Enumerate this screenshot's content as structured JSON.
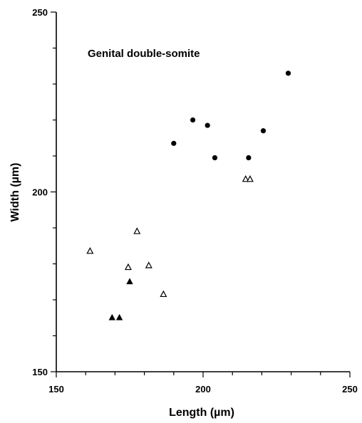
{
  "chart_data": {
    "type": "scatter",
    "xlabel": "Length (µm)",
    "ylabel": "Width (µm)",
    "xlim": [
      150,
      250
    ],
    "ylim": [
      150,
      250
    ],
    "x_ticks_labeled": [
      150,
      200,
      250
    ],
    "y_ticks_labeled": [
      150,
      200,
      250
    ],
    "x_minor_step": 10,
    "y_minor_step": 10,
    "grid": false,
    "annotation": "Genital double-somite",
    "series": [
      {
        "marker": "filled-circle",
        "points": [
          [
            190,
            213.5
          ],
          [
            196.5,
            220
          ],
          [
            201.5,
            218.5
          ],
          [
            204,
            209.5
          ],
          [
            215.5,
            209.5
          ],
          [
            220.5,
            217
          ],
          [
            229,
            233
          ]
        ]
      },
      {
        "marker": "open-triangle",
        "points": [
          [
            161.5,
            183.5
          ],
          [
            174.5,
            179
          ],
          [
            177.5,
            189
          ],
          [
            181.5,
            179.5
          ],
          [
            186.5,
            171.5
          ],
          [
            214.5,
            203.5
          ],
          [
            216,
            203.5
          ]
        ]
      },
      {
        "marker": "filled-triangle",
        "points": [
          [
            169,
            165
          ],
          [
            171.5,
            165
          ],
          [
            175,
            175
          ]
        ]
      }
    ]
  }
}
